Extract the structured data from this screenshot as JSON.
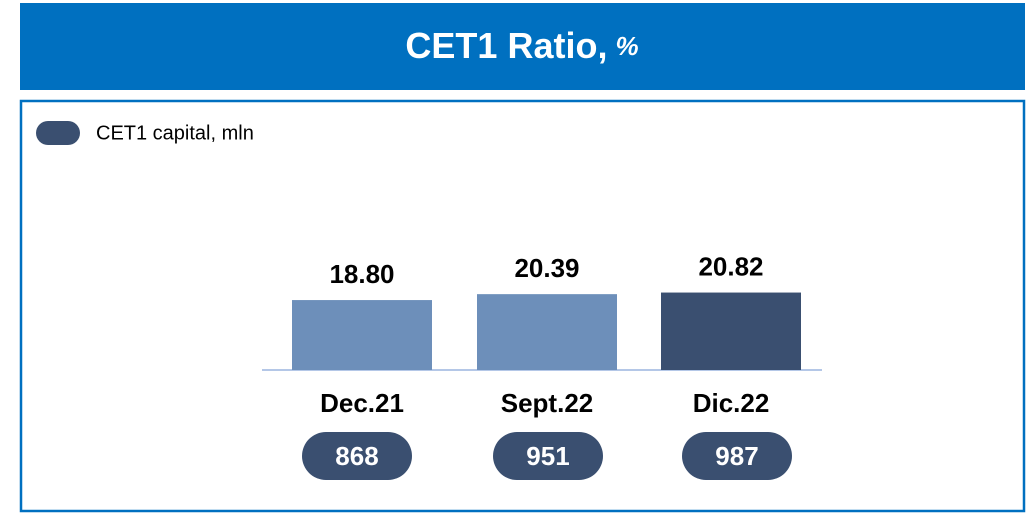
{
  "chart_data": {
    "type": "bar",
    "title": "CET1 Ratio,",
    "unit": "%",
    "categories": [
      "Dec.21",
      "Sept.22",
      "Dic.22"
    ],
    "values": [
      18.8,
      20.39,
      20.82
    ],
    "value_labels": [
      "18.80",
      "20.39",
      "20.82"
    ],
    "colors": [
      "#6d8fba",
      "#6d8fba",
      "#3a4f70"
    ],
    "ylim": [
      0,
      25
    ],
    "capital": {
      "name": "CET1 capital, mln",
      "color": "#3a4f70",
      "values": [
        868,
        951,
        987
      ]
    }
  }
}
